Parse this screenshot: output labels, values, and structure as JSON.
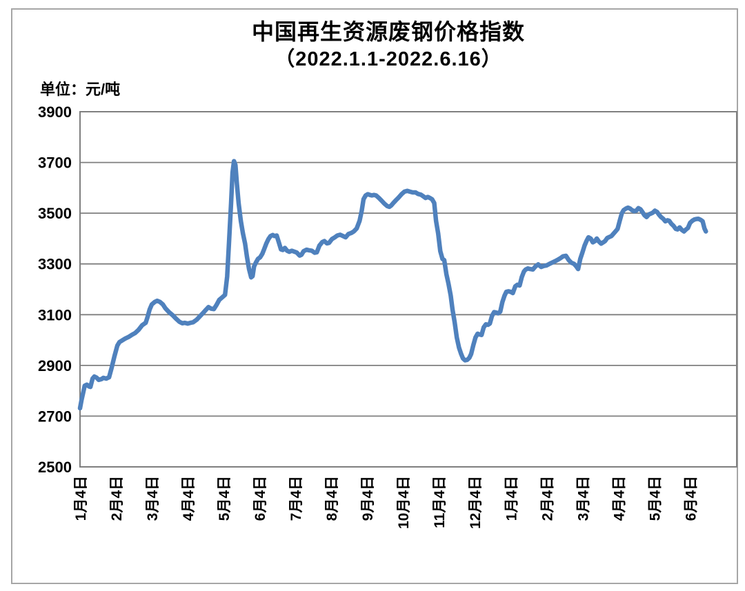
{
  "chart_data": {
    "type": "line",
    "title": "中国再生资源废钢价格指数",
    "subtitle": "（2022.1.1-2022.6.16）",
    "unit_label": "单位：元/吨",
    "ylim": [
      2500,
      3900
    ],
    "y_ticks": [
      3900,
      3700,
      3500,
      3300,
      3100,
      2900,
      2700,
      2500
    ],
    "x_tick_labels": [
      "1月4日",
      "2月4日",
      "3月4日",
      "4月4日",
      "5月4日",
      "6月4日",
      "7月4日",
      "8月4日",
      "9月4日",
      "10月4日",
      "11月4日",
      "12月4日",
      "1月4日",
      "2月4日",
      "3月4日",
      "4月4日",
      "5月4日",
      "6月4日"
    ],
    "x_axis_months": 18.3,
    "grid": true,
    "legend_position": "none",
    "line_color": "#4F81BD",
    "grid_color": "#7f7f7f",
    "series": [
      {
        "name": "中国再生资源废钢价格指数",
        "points": [
          [
            0,
            2731
          ],
          [
            0.04,
            2762
          ],
          [
            0.1,
            2800
          ],
          [
            0.13,
            2820
          ],
          [
            0.19,
            2824
          ],
          [
            0.25,
            2817
          ],
          [
            0.29,
            2815
          ],
          [
            0.35,
            2848
          ],
          [
            0.4,
            2856
          ],
          [
            0.46,
            2852
          ],
          [
            0.52,
            2843
          ],
          [
            0.6,
            2846
          ],
          [
            0.65,
            2851
          ],
          [
            0.73,
            2848
          ],
          [
            0.81,
            2853
          ],
          [
            0.88,
            2890
          ],
          [
            0.96,
            2936
          ],
          [
            1.04,
            2978
          ],
          [
            1.1,
            2992
          ],
          [
            1.17,
            2998
          ],
          [
            1.25,
            3005
          ],
          [
            1.35,
            3012
          ],
          [
            1.44,
            3020
          ],
          [
            1.54,
            3028
          ],
          [
            1.63,
            3040
          ],
          [
            1.73,
            3058
          ],
          [
            1.83,
            3068
          ],
          [
            1.88,
            3090
          ],
          [
            1.94,
            3120
          ],
          [
            2,
            3140
          ],
          [
            2.08,
            3150
          ],
          [
            2.15,
            3155
          ],
          [
            2.23,
            3150
          ],
          [
            2.31,
            3140
          ],
          [
            2.38,
            3125
          ],
          [
            2.48,
            3110
          ],
          [
            2.58,
            3098
          ],
          [
            2.67,
            3085
          ],
          [
            2.77,
            3072
          ],
          [
            2.85,
            3066
          ],
          [
            2.92,
            3068
          ],
          [
            3,
            3065
          ],
          [
            3.08,
            3068
          ],
          [
            3.15,
            3070
          ],
          [
            3.25,
            3080
          ],
          [
            3.35,
            3095
          ],
          [
            3.42,
            3105
          ],
          [
            3.5,
            3118
          ],
          [
            3.58,
            3130
          ],
          [
            3.65,
            3124
          ],
          [
            3.73,
            3122
          ],
          [
            3.81,
            3140
          ],
          [
            3.88,
            3158
          ],
          [
            3.96,
            3168
          ],
          [
            4.04,
            3178
          ],
          [
            4.1,
            3250
          ],
          [
            4.15,
            3380
          ],
          [
            4.21,
            3540
          ],
          [
            4.25,
            3660
          ],
          [
            4.29,
            3705
          ],
          [
            4.33,
            3690
          ],
          [
            4.37,
            3620
          ],
          [
            4.42,
            3540
          ],
          [
            4.48,
            3470
          ],
          [
            4.54,
            3420
          ],
          [
            4.6,
            3380
          ],
          [
            4.65,
            3330
          ],
          [
            4.71,
            3280
          ],
          [
            4.77,
            3247
          ],
          [
            4.81,
            3252
          ],
          [
            4.85,
            3290
          ],
          [
            4.9,
            3305
          ],
          [
            4.96,
            3320
          ],
          [
            5.02,
            3326
          ],
          [
            5.08,
            3340
          ],
          [
            5.13,
            3358
          ],
          [
            5.19,
            3380
          ],
          [
            5.25,
            3398
          ],
          [
            5.31,
            3410
          ],
          [
            5.37,
            3414
          ],
          [
            5.42,
            3410
          ],
          [
            5.48,
            3412
          ],
          [
            5.54,
            3385
          ],
          [
            5.6,
            3357
          ],
          [
            5.65,
            3355
          ],
          [
            5.71,
            3363
          ],
          [
            5.77,
            3352
          ],
          [
            5.83,
            3348
          ],
          [
            5.9,
            3352
          ],
          [
            5.98,
            3348
          ],
          [
            6.04,
            3345
          ],
          [
            6.12,
            3333
          ],
          [
            6.17,
            3336
          ],
          [
            6.23,
            3350
          ],
          [
            6.31,
            3356
          ],
          [
            6.38,
            3354
          ],
          [
            6.46,
            3352
          ],
          [
            6.54,
            3344
          ],
          [
            6.6,
            3346
          ],
          [
            6.67,
            3372
          ],
          [
            6.75,
            3386
          ],
          [
            6.81,
            3390
          ],
          [
            6.88,
            3381
          ],
          [
            6.94,
            3383
          ],
          [
            7.02,
            3398
          ],
          [
            7.1,
            3405
          ],
          [
            7.17,
            3412
          ],
          [
            7.25,
            3415
          ],
          [
            7.33,
            3410
          ],
          [
            7.4,
            3405
          ],
          [
            7.48,
            3418
          ],
          [
            7.56,
            3422
          ],
          [
            7.63,
            3428
          ],
          [
            7.71,
            3440
          ],
          [
            7.79,
            3470
          ],
          [
            7.85,
            3510
          ],
          [
            7.9,
            3555
          ],
          [
            7.96,
            3570
          ],
          [
            8.02,
            3575
          ],
          [
            8.08,
            3572
          ],
          [
            8.13,
            3570
          ],
          [
            8.19,
            3572
          ],
          [
            8.25,
            3570
          ],
          [
            8.33,
            3560
          ],
          [
            8.4,
            3550
          ],
          [
            8.48,
            3538
          ],
          [
            8.56,
            3528
          ],
          [
            8.62,
            3525
          ],
          [
            8.67,
            3530
          ],
          [
            8.73,
            3540
          ],
          [
            8.81,
            3552
          ],
          [
            8.88,
            3562
          ],
          [
            8.96,
            3575
          ],
          [
            9.04,
            3585
          ],
          [
            9.12,
            3588
          ],
          [
            9.19,
            3585
          ],
          [
            9.27,
            3582
          ],
          [
            9.35,
            3582
          ],
          [
            9.42,
            3576
          ],
          [
            9.5,
            3573
          ],
          [
            9.58,
            3565
          ],
          [
            9.63,
            3560
          ],
          [
            9.69,
            3564
          ],
          [
            9.75,
            3560
          ],
          [
            9.81,
            3555
          ],
          [
            9.87,
            3540
          ],
          [
            9.92,
            3470
          ],
          [
            9.98,
            3420
          ],
          [
            10.04,
            3350
          ],
          [
            10.1,
            3320
          ],
          [
            10.15,
            3315
          ],
          [
            10.21,
            3260
          ],
          [
            10.27,
            3220
          ],
          [
            10.33,
            3175
          ],
          [
            10.38,
            3120
          ],
          [
            10.44,
            3070
          ],
          [
            10.5,
            3010
          ],
          [
            10.56,
            2970
          ],
          [
            10.62,
            2945
          ],
          [
            10.67,
            2928
          ],
          [
            10.73,
            2920
          ],
          [
            10.79,
            2922
          ],
          [
            10.85,
            2930
          ],
          [
            10.9,
            2945
          ],
          [
            10.96,
            2980
          ],
          [
            11.02,
            3010
          ],
          [
            11.08,
            3025
          ],
          [
            11.13,
            3022
          ],
          [
            11.19,
            3020
          ],
          [
            11.25,
            3050
          ],
          [
            11.31,
            3062
          ],
          [
            11.37,
            3060
          ],
          [
            11.42,
            3065
          ],
          [
            11.48,
            3095
          ],
          [
            11.54,
            3110
          ],
          [
            11.6,
            3108
          ],
          [
            11.65,
            3105
          ],
          [
            11.71,
            3112
          ],
          [
            11.77,
            3150
          ],
          [
            11.83,
            3175
          ],
          [
            11.88,
            3190
          ],
          [
            11.94,
            3192
          ],
          [
            12,
            3190
          ],
          [
            12.06,
            3185
          ],
          [
            12.13,
            3212
          ],
          [
            12.19,
            3218
          ],
          [
            12.25,
            3215
          ],
          [
            12.31,
            3248
          ],
          [
            12.37,
            3270
          ],
          [
            12.42,
            3278
          ],
          [
            12.48,
            3282
          ],
          [
            12.54,
            3280
          ],
          [
            12.62,
            3278
          ],
          [
            12.69,
            3290
          ],
          [
            12.77,
            3298
          ],
          [
            12.85,
            3288
          ],
          [
            12.92,
            3292
          ],
          [
            13,
            3294
          ],
          [
            13.08,
            3300
          ],
          [
            13.15,
            3305
          ],
          [
            13.23,
            3310
          ],
          [
            13.31,
            3316
          ],
          [
            13.38,
            3322
          ],
          [
            13.46,
            3330
          ],
          [
            13.54,
            3332
          ],
          [
            13.62,
            3315
          ],
          [
            13.69,
            3305
          ],
          [
            13.77,
            3300
          ],
          [
            13.83,
            3290
          ],
          [
            13.88,
            3280
          ],
          [
            13.94,
            3320
          ],
          [
            14,
            3345
          ],
          [
            14.06,
            3372
          ],
          [
            14.12,
            3392
          ],
          [
            14.17,
            3405
          ],
          [
            14.23,
            3400
          ],
          [
            14.29,
            3385
          ],
          [
            14.35,
            3390
          ],
          [
            14.4,
            3400
          ],
          [
            14.46,
            3388
          ],
          [
            14.52,
            3380
          ],
          [
            14.58,
            3385
          ],
          [
            14.63,
            3390
          ],
          [
            14.69,
            3402
          ],
          [
            14.75,
            3406
          ],
          [
            14.81,
            3410
          ],
          [
            14.87,
            3420
          ],
          [
            14.92,
            3428
          ],
          [
            14.98,
            3438
          ],
          [
            15.04,
            3470
          ],
          [
            15.1,
            3500
          ],
          [
            15.15,
            3512
          ],
          [
            15.21,
            3518
          ],
          [
            15.27,
            3522
          ],
          [
            15.33,
            3518
          ],
          [
            15.38,
            3512
          ],
          [
            15.44,
            3508
          ],
          [
            15.5,
            3510
          ],
          [
            15.56,
            3520
          ],
          [
            15.62,
            3515
          ],
          [
            15.67,
            3505
          ],
          [
            15.73,
            3492
          ],
          [
            15.79,
            3485
          ],
          [
            15.85,
            3495
          ],
          [
            15.9,
            3498
          ],
          [
            15.96,
            3502
          ],
          [
            16.02,
            3510
          ],
          [
            16.08,
            3505
          ],
          [
            16.13,
            3495
          ],
          [
            16.19,
            3485
          ],
          [
            16.25,
            3478
          ],
          [
            16.31,
            3468
          ],
          [
            16.37,
            3472
          ],
          [
            16.42,
            3470
          ],
          [
            16.48,
            3458
          ],
          [
            16.54,
            3450
          ],
          [
            16.6,
            3438
          ],
          [
            16.65,
            3436
          ],
          [
            16.71,
            3444
          ],
          [
            16.77,
            3434
          ],
          [
            16.83,
            3428
          ],
          [
            16.88,
            3435
          ],
          [
            16.94,
            3442
          ],
          [
            17,
            3462
          ],
          [
            17.06,
            3470
          ],
          [
            17.12,
            3475
          ],
          [
            17.17,
            3477
          ],
          [
            17.23,
            3478
          ],
          [
            17.29,
            3474
          ],
          [
            17.35,
            3468
          ],
          [
            17.4,
            3440
          ],
          [
            17.44,
            3428
          ]
        ]
      }
    ]
  }
}
